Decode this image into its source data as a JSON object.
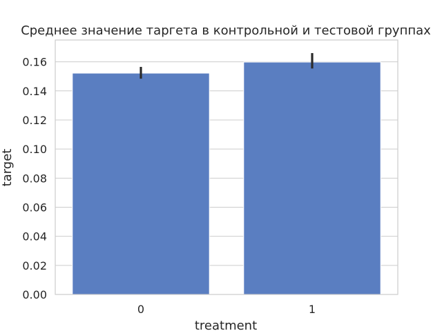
{
  "chart_data": {
    "type": "bar",
    "title": "Среднее значение таргета в контрольной и тестовой группах",
    "xlabel": "treatment",
    "ylabel": "target",
    "categories": [
      "0",
      "1"
    ],
    "values": [
      0.1522,
      0.1598
    ],
    "error_bars": [
      {
        "low": 0.1484,
        "high": 0.1565
      },
      {
        "low": 0.1554,
        "high": 0.166
      }
    ],
    "ylim": [
      0,
      0.175
    ],
    "yticks": [
      "0.00",
      "0.02",
      "0.04",
      "0.06",
      "0.08",
      "0.10",
      "0.12",
      "0.14",
      "0.16"
    ],
    "grid": true,
    "colors": {
      "bar": "#5a7ec1",
      "error": "#2b2b2b",
      "grid": "#cccccc",
      "frame": "#cccccc",
      "text": "#262626"
    }
  }
}
